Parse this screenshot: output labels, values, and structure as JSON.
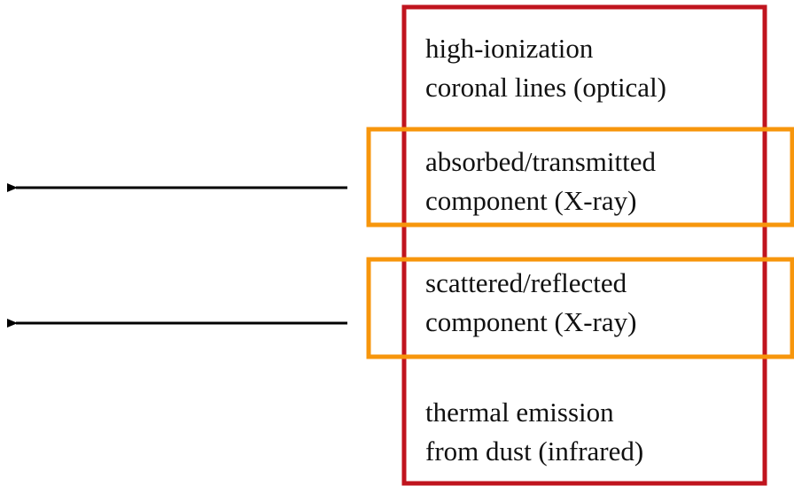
{
  "items": [
    {
      "lines": [
        "high-ionization",
        "coronal lines (optical)"
      ]
    },
    {
      "lines": [
        "absorbed/transmitted",
        "component (X-ray)"
      ]
    },
    {
      "lines": [
        "scattered/reflected",
        "component (X-ray)"
      ]
    },
    {
      "lines": [
        "thermal emission",
        "from dust (infrared)"
      ]
    }
  ]
}
